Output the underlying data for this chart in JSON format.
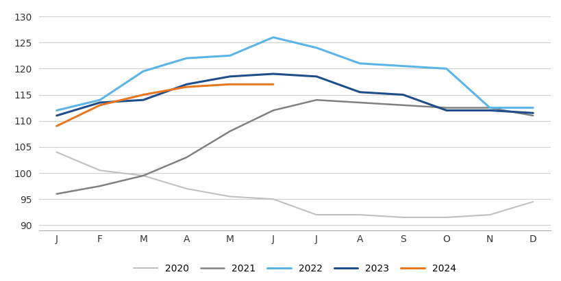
{
  "months": [
    "J",
    "F",
    "M",
    "A",
    "M",
    "J",
    "J",
    "A",
    "S",
    "O",
    "N",
    "D"
  ],
  "series": {
    "2020": [
      104,
      100.5,
      99.5,
      97,
      95.5,
      95,
      92,
      92,
      91.5,
      91.5,
      92,
      94.5
    ],
    "2021": [
      96,
      97.5,
      99.5,
      103,
      108,
      112,
      114,
      113.5,
      113,
      112.5,
      112.5,
      111
    ],
    "2022": [
      112,
      114,
      119.5,
      122,
      122.5,
      126,
      124,
      121,
      120.5,
      120,
      112.5,
      112.5
    ],
    "2023": [
      111,
      113.5,
      114,
      117,
      118.5,
      119,
      118.5,
      115.5,
      115,
      112,
      112,
      111.5
    ],
    "2024": [
      109,
      113,
      115,
      116.5,
      117,
      117,
      null,
      null,
      null,
      null,
      null,
      null
    ]
  },
  "colors": {
    "2020": "#c0c0c0",
    "2021": "#808080",
    "2022": "#5ab4e8",
    "2023": "#1f4e8c",
    "2024": "#e87820"
  },
  "linewidths": {
    "2020": 1.5,
    "2021": 1.8,
    "2022": 2.2,
    "2023": 2.2,
    "2024": 2.2
  },
  "ylim": [
    89,
    131
  ],
  "yticks": [
    90,
    95,
    100,
    105,
    110,
    115,
    120,
    125,
    130
  ],
  "background_color": "#ffffff",
  "grid_color": "#d0d0d0",
  "legend_labels": [
    "2020",
    "2021",
    "2022",
    "2023",
    "2024"
  ]
}
